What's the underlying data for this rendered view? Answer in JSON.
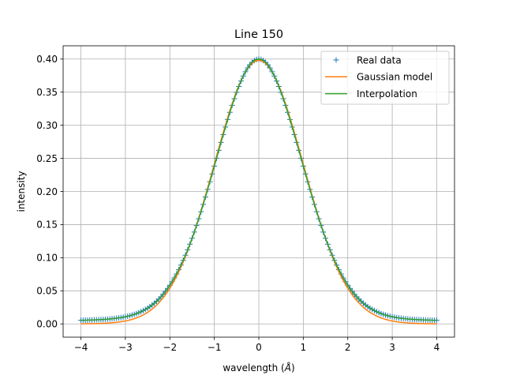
{
  "chart_data": {
    "type": "line",
    "title": "Line 150",
    "xlabel_main": "wavelength (",
    "xlabel_unit": "Å",
    "xlabel_close": ")",
    "ylabel": "intensity",
    "xlim": [
      -4.4,
      4.4
    ],
    "ylim": [
      -0.02,
      0.42
    ],
    "x_ticks": [
      -4,
      -3,
      -2,
      -1,
      0,
      1,
      2,
      3,
      4
    ],
    "x_tick_labels": [
      "−4",
      "−3",
      "−2",
      "−1",
      "0",
      "1",
      "2",
      "3",
      "4"
    ],
    "y_ticks": [
      0.0,
      0.05,
      0.1,
      0.15,
      0.2,
      0.25,
      0.3,
      0.35,
      0.4
    ],
    "y_tick_labels": [
      "0.00",
      "0.05",
      "0.10",
      "0.15",
      "0.20",
      "0.25",
      "0.30",
      "0.35",
      "0.40"
    ],
    "grid": true,
    "legend_position": "top-right",
    "x_range": [
      -4.0,
      4.0
    ],
    "sample_count": 321,
    "series": [
      {
        "name": "Real data",
        "style": "plus-markers",
        "color": "#1f77b4",
        "model": "voigt-like",
        "peak": 0.4,
        "sigma": 1.0,
        "tail_floor": 0.003
      },
      {
        "name": "Gaussian model",
        "style": "line",
        "color": "#ff7f0e",
        "model": "gaussian",
        "peak": 0.398,
        "sigma": 1.0
      },
      {
        "name": "Interpolation",
        "style": "line",
        "color": "#2ca02c",
        "model": "voigt-like",
        "peak": 0.4,
        "sigma": 1.0,
        "tail_floor": 0.003
      }
    ]
  }
}
